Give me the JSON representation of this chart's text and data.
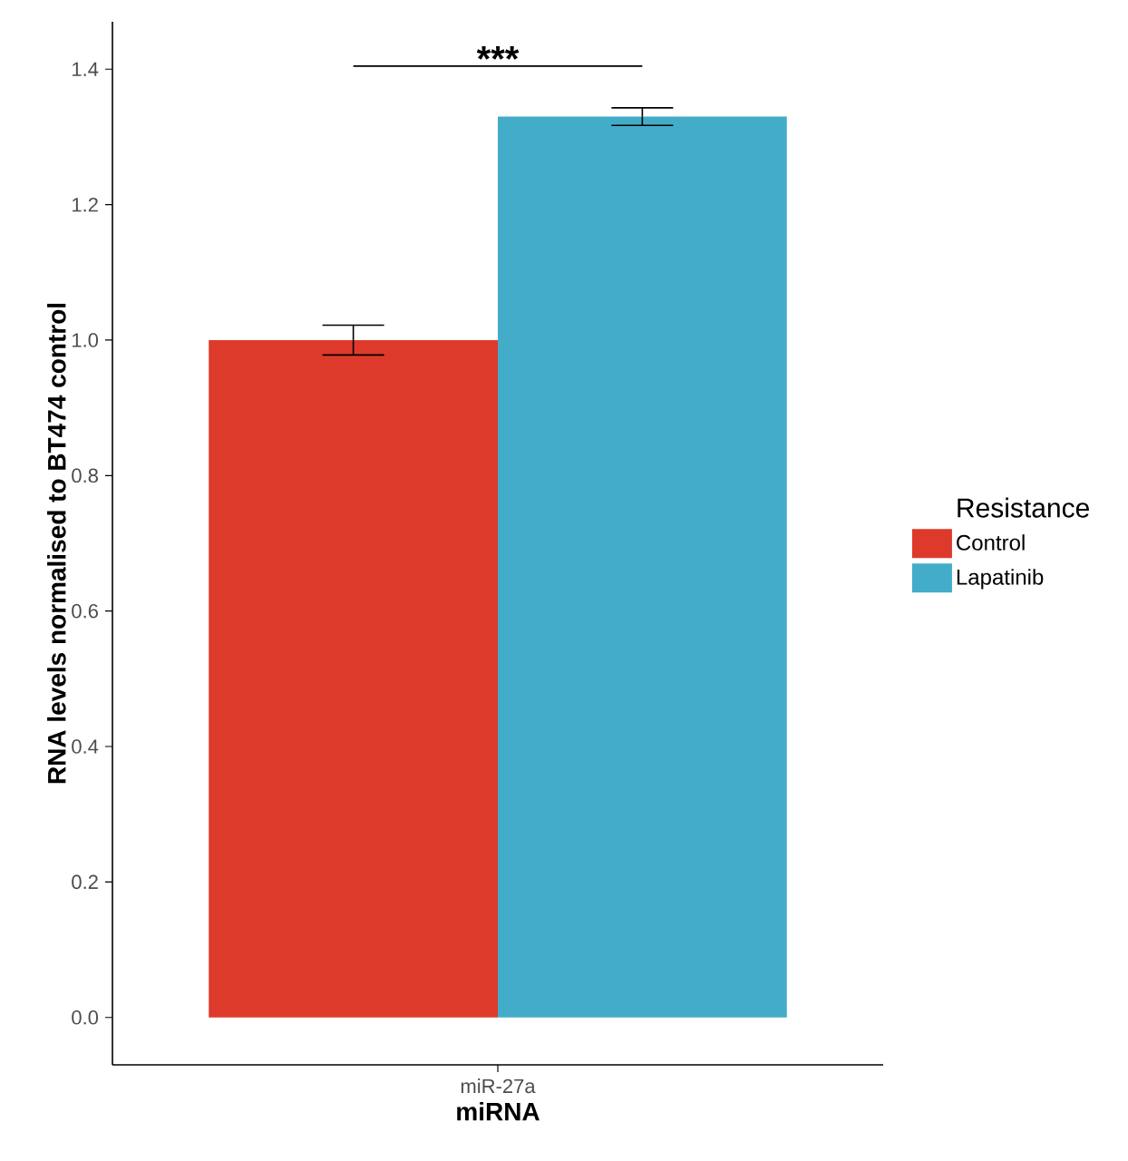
{
  "chart_data": {
    "type": "bar",
    "xlabel": "miRNA",
    "ylabel": "RNA levels normalised to BT474 control",
    "legend_title": "Resistance",
    "categories": [
      "miR-27a"
    ],
    "series": [
      {
        "name": "Control",
        "color": "#de3a2b",
        "values": [
          1.0
        ],
        "errors": [
          0.022
        ]
      },
      {
        "name": "Lapatinib",
        "color": "#43acc9",
        "values": [
          1.33
        ],
        "errors": [
          0.013
        ]
      }
    ],
    "ylim": [
      -0.07,
      1.47
    ],
    "yticks": [
      {
        "value": 0,
        "label": "0.0"
      },
      {
        "value": 0.2,
        "label": "0.2"
      },
      {
        "value": 0.4,
        "label": "0.4"
      },
      {
        "value": 0.6,
        "label": "0.6"
      },
      {
        "value": 0.8,
        "label": "0.8"
      },
      {
        "value": 1.0,
        "label": "1.0"
      },
      {
        "value": 1.2,
        "label": "1.2"
      },
      {
        "value": 1.4,
        "label": "1.4"
      }
    ],
    "annotations": [
      "***"
    ],
    "legend": "right"
  }
}
